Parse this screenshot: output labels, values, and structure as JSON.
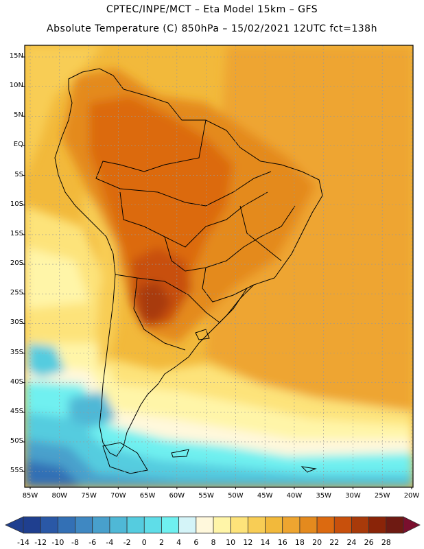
{
  "header": {
    "line1": "CPTEC/INPE/MCT –  Eta Model 15km – GFS",
    "line2": "Absolute Temperature (C) 850hPa – 15/02/2021 12UTC fct=138h"
  },
  "map": {
    "lat_labels": [
      "15N",
      "10N",
      "5N",
      "EQ",
      "5S",
      "10S",
      "15S",
      "20S",
      "25S",
      "30S",
      "35S",
      "40S",
      "45S",
      "50S",
      "55S"
    ],
    "lon_labels": [
      "85W",
      "80W",
      "75W",
      "70W",
      "65W",
      "60W",
      "55W",
      "50W",
      "45W",
      "40W",
      "35W",
      "30W",
      "25W",
      "20W"
    ]
  },
  "colorbar": {
    "labels": [
      "-14",
      "-12",
      "-10",
      "-8",
      "-6",
      "-4",
      "-2",
      "0",
      "2",
      "4",
      "6",
      "8",
      "10",
      "12",
      "14",
      "16",
      "18",
      "20",
      "22",
      "24",
      "26",
      "28"
    ],
    "colors": [
      "#1f3f8f",
      "#2a58a6",
      "#3370b5",
      "#3f88c2",
      "#48a0cc",
      "#4fb8d6",
      "#55ccdf",
      "#5fdde8",
      "#6ff0f0",
      "#d4f4f8",
      "#fff8dc",
      "#fff5a8",
      "#fde37a",
      "#f8cd55",
      "#f2b93b",
      "#eea530",
      "#e48a1e",
      "#dc6a10",
      "#c8500c",
      "#a83a0a",
      "#8a2408",
      "#6e1a12"
    ]
  }
}
